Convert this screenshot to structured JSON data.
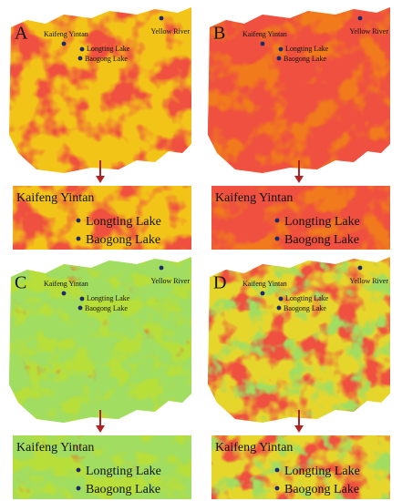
{
  "panels": [
    {
      "letter": "A",
      "map_labels": {
        "kaifeng": "Kaifeng Yintan",
        "longting": "Longting Lake",
        "baogong": "Baogong Lake",
        "river": "Yellow River"
      },
      "zoom_labels": {
        "kaifeng": "Kaifeng Yintan",
        "longting": "Longting Lake",
        "baogong": "Baogong Lake"
      }
    },
    {
      "letter": "B",
      "map_labels": {
        "kaifeng": "Kaifeng Yintan",
        "longting": "Longting Lake",
        "baogong": "Baogong Lake",
        "river": "Yellow River"
      },
      "zoom_labels": {
        "kaifeng": "Kaifeng Yintan",
        "longting": "Longting Lake",
        "baogong": "Baogong Lake"
      }
    },
    {
      "letter": "C",
      "map_labels": {
        "kaifeng": "Kaifeng Yintan",
        "longting": "Longting Lake",
        "baogong": "Baogong Lake",
        "river": "Yellow River"
      },
      "zoom_labels": {
        "kaifeng": "Kaifeng Yintan",
        "longting": "Longting Lake",
        "baogong": "Baogong Lake"
      }
    },
    {
      "letter": "D",
      "map_labels": {
        "kaifeng": "Kaifeng Yintan",
        "longting": "Longting Lake",
        "baogong": "Baogong Lake",
        "river": "Yellow River"
      },
      "zoom_labels": {
        "kaifeng": "Kaifeng Yintan",
        "longting": "Longting Lake",
        "baogong": "Baogong Lake"
      }
    }
  ]
}
